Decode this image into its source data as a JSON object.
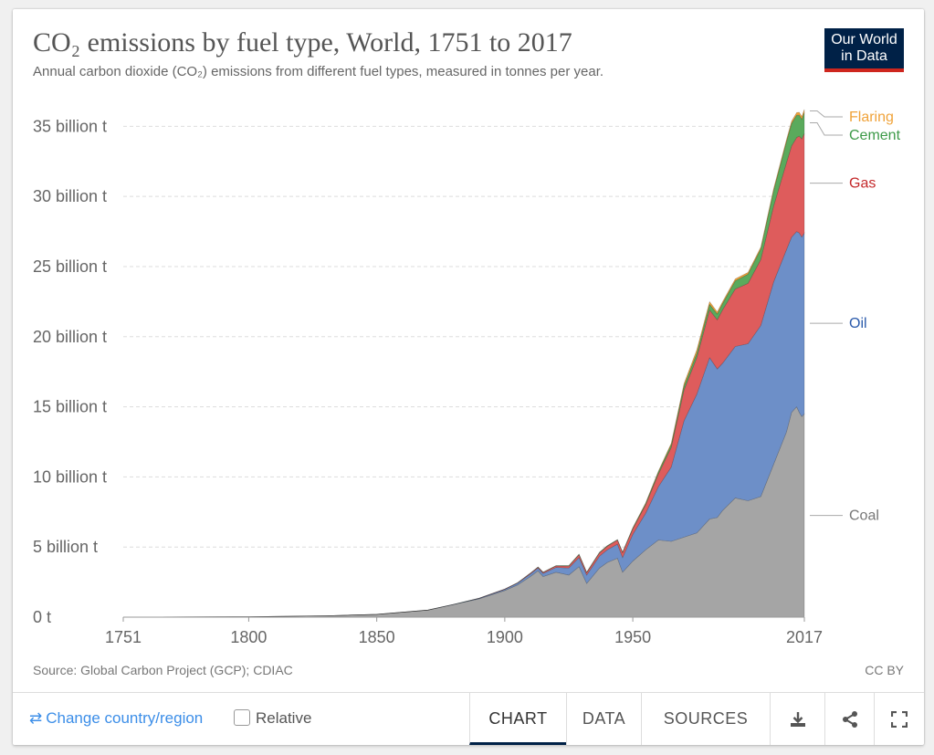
{
  "header": {
    "title": "CO₂ emissions by fuel type, World, 1751 to 2017",
    "subtitle": "Annual carbon dioxide (CO₂) emissions from different fuel types, measured in tonnes per year.",
    "logo_line1": "Our World",
    "logo_line2": "in Data"
  },
  "footer": {
    "source": "Source: Global Carbon Project (GCP); CDIAC",
    "license": "CC BY",
    "change_country": "Change country/region",
    "relative_label": "Relative",
    "tabs": {
      "chart": "CHART",
      "data": "DATA",
      "sources": "SOURCES"
    }
  },
  "colors": {
    "coal": "#a5a5a5",
    "oil": "#6d8fc8",
    "gas": "#de5c5c",
    "cement": "#5aaa5c",
    "flaring": "#f0a33a",
    "coal_label": "#777777",
    "oil_label": "#2a5aab",
    "gas_label": "#c4292b",
    "cement_label": "#3d9a48",
    "flaring_label": "#f0a33a",
    "accent_blue": "#3c8ee8",
    "brand_navy": "#002147",
    "brand_red": "#ce261e"
  },
  "chart_data": {
    "type": "area",
    "stacked": true,
    "xlim": [
      1751,
      2017
    ],
    "ylim": [
      0,
      36000000000
    ],
    "y_ticks": [
      {
        "value": 0,
        "label": "0 t"
      },
      {
        "value": 5000000000,
        "label": "5 billion t"
      },
      {
        "value": 10000000000,
        "label": "10 billion t"
      },
      {
        "value": 15000000000,
        "label": "15 billion t"
      },
      {
        "value": 20000000000,
        "label": "20 billion t"
      },
      {
        "value": 25000000000,
        "label": "25 billion t"
      },
      {
        "value": 30000000000,
        "label": "30 billion t"
      },
      {
        "value": 35000000000,
        "label": "35 billion t"
      }
    ],
    "x_ticks": [
      {
        "value": 1751,
        "label": "1751"
      },
      {
        "value": 1800,
        "label": "1800"
      },
      {
        "value": 1850,
        "label": "1850"
      },
      {
        "value": 1900,
        "label": "1900"
      },
      {
        "value": 1950,
        "label": "1950"
      },
      {
        "value": 2017,
        "label": "2017"
      }
    ],
    "grid": "horizontal dashed",
    "legend_placement": "right, inline labels at 2017",
    "x": [
      1751,
      1800,
      1830,
      1850,
      1870,
      1880,
      1890,
      1900,
      1905,
      1910,
      1913,
      1915,
      1920,
      1925,
      1929,
      1932,
      1937,
      1940,
      1944,
      1946,
      1950,
      1955,
      1960,
      1965,
      1970,
      1975,
      1980,
      1983,
      1985,
      1990,
      1995,
      2000,
      2005,
      2010,
      2012,
      2014,
      2015,
      2016,
      2017
    ],
    "series": [
      {
        "name": "Coal",
        "values": [
          9000000.0,
          30000000.0,
          100000000.0,
          200000000.0,
          500000000.0,
          900000000.0,
          1300000000.0,
          1900000000.0,
          2300000000.0,
          2900000000.0,
          3300000000.0,
          2900000000.0,
          3200000000.0,
          3000000000.0,
          3600000000.0,
          2400000000.0,
          3500000000.0,
          3900000000.0,
          4200000000.0,
          3200000000.0,
          4000000000.0,
          4800000000.0,
          5500000000.0,
          5400000000.0,
          5700000000.0,
          6000000000.0,
          7000000000.0,
          7100000000.0,
          7600000000.0,
          8500000000.0,
          8300000000.0,
          8600000000.0,
          10900000000.0,
          13200000000.0,
          14600000000.0,
          15000000000.0,
          14600000000.0,
          14300000000.0,
          14500000000.0
        ]
      },
      {
        "name": "Oil",
        "values": [
          0,
          0,
          0,
          0,
          5000000.0,
          10000000.0,
          40000000.0,
          80000000.0,
          120000000.0,
          180000000.0,
          200000000.0,
          220000000.0,
          350000000.0,
          500000000.0,
          650000000.0,
          600000000.0,
          850000000.0,
          900000000.0,
          1000000000.0,
          1050000000.0,
          1900000000.0,
          2600000000.0,
          3800000000.0,
          5300000000.0,
          8300000000.0,
          9900000000.0,
          11500000000.0,
          10600000000.0,
          10500000000.0,
          10800000000.0,
          11200000000.0,
          12200000000.0,
          13000000000.0,
          13000000000.0,
          12500000000.0,
          12500000000.0,
          12800000000.0,
          12800000000.0,
          12900000000.0
        ]
      },
      {
        "name": "Gas",
        "values": [
          0,
          0,
          0,
          0,
          0,
          2000000.0,
          10000000.0,
          20000000.0,
          30000000.0,
          50000000.0,
          60000000.0,
          70000000.0,
          100000000.0,
          140000000.0,
          200000000.0,
          180000000.0,
          230000000.0,
          250000000.0,
          300000000.0,
          350000000.0,
          400000000.0,
          600000000.0,
          900000000.0,
          1400000000.0,
          2200000000.0,
          2600000000.0,
          3400000000.0,
          3500000000.0,
          3800000000.0,
          4100000000.0,
          4300000000.0,
          4700000000.0,
          5400000000.0,
          6200000000.0,
          6500000000.0,
          6700000000.0,
          6900000000.0,
          7000000000.0,
          7100000000.0
        ]
      },
      {
        "name": "Cement",
        "values": [
          0,
          0,
          0,
          0,
          0,
          0,
          1000000.0,
          2000000.0,
          5000000.0,
          10000000.0,
          20000000.0,
          20000000.0,
          20000000.0,
          30000000.0,
          40000000.0,
          30000000.0,
          40000000.0,
          40000000.0,
          30000000.0,
          40000000.0,
          60000000.0,
          100000000.0,
          150000000.0,
          200000000.0,
          280000000.0,
          320000000.0,
          400000000.0,
          420000000.0,
          440000000.0,
          580000000.0,
          660000000.0,
          760000000.0,
          1100000000.0,
          1500000000.0,
          1600000000.0,
          1600000000.0,
          1500000000.0,
          1400000000.0,
          1500000000.0
        ]
      },
      {
        "name": "Flaring",
        "values": [
          0,
          0,
          0,
          0,
          0,
          0,
          0,
          0,
          0,
          0,
          0,
          0,
          0,
          0,
          0,
          0,
          0,
          0,
          0,
          0,
          20000000.0,
          40000000.0,
          60000000.0,
          100000000.0,
          180000000.0,
          250000000.0,
          200000000.0,
          150000000.0,
          140000000.0,
          140000000.0,
          120000000.0,
          130000000.0,
          150000000.0,
          150000000.0,
          160000000.0,
          180000000.0,
          200000000.0,
          200000000.0,
          200000000.0
        ]
      }
    ]
  }
}
